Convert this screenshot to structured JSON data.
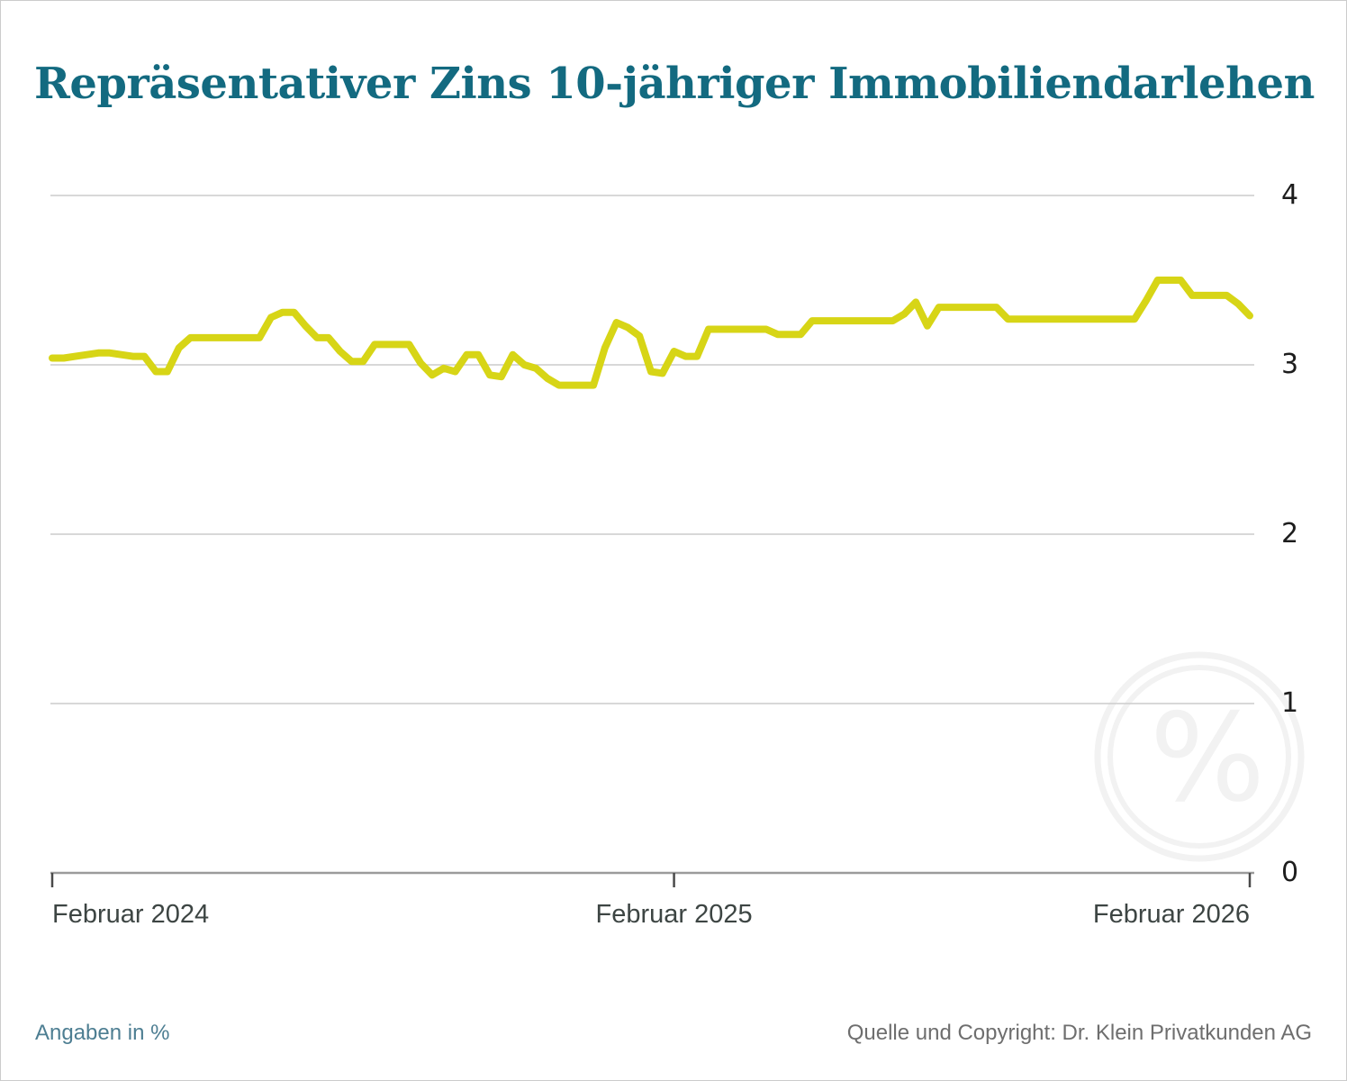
{
  "title": "Repräsentativer Zins 10-jähriger Immobiliendarlehen",
  "footer": {
    "left": "Angaben in %",
    "right": "Quelle und Copyright: Dr. Klein Privatkunden AG"
  },
  "watermark": {
    "icon": "percent-circle-icon",
    "symbol": "%"
  },
  "colors": {
    "title": "#136a80",
    "line": "#d7d516",
    "grid": "#cccccc",
    "axis": "#9b9b9b",
    "tick": "#4a4a4a",
    "x_labels": "#3d4543",
    "y_labels": "#1d1d1d",
    "footer_left": "#4d7e92",
    "footer_right": "#6e6e6e",
    "watermark": "#f2f2f2"
  },
  "chart_data": {
    "type": "line",
    "title": "Repräsentativer Zins 10-jähriger Immobiliendarlehen",
    "unit": "%",
    "ylim": [
      0,
      4
    ],
    "y_ticks": [
      0,
      1,
      2,
      3,
      4
    ],
    "grid": "horizontal",
    "legend": "none",
    "x_ticks": [
      {
        "label": "Februar 2024",
        "index": 0
      },
      {
        "label": "Februar 2025",
        "index": 54
      },
      {
        "label": "Februar 2026",
        "index": 104
      }
    ],
    "series_name": "Repräsentativer Zins 10-jähriger Immobiliendarlehen (%)",
    "values": [
      3.04,
      3.04,
      3.05,
      3.06,
      3.07,
      3.07,
      3.06,
      3.05,
      3.05,
      2.96,
      2.96,
      3.1,
      3.16,
      3.16,
      3.16,
      3.16,
      3.16,
      3.16,
      3.16,
      3.28,
      3.31,
      3.31,
      3.23,
      3.16,
      3.16,
      3.08,
      3.02,
      3.02,
      3.12,
      3.12,
      3.12,
      3.12,
      3.01,
      2.94,
      2.98,
      2.96,
      3.06,
      3.06,
      2.94,
      2.93,
      3.06,
      3.0,
      2.98,
      2.92,
      2.88,
      2.88,
      2.88,
      2.88,
      3.1,
      3.25,
      3.22,
      3.17,
      2.96,
      2.95,
      3.08,
      3.05,
      3.05,
      3.21,
      3.21,
      3.21,
      3.21,
      3.21,
      3.21,
      3.18,
      3.18,
      3.18,
      3.26,
      3.26,
      3.26,
      3.26,
      3.26,
      3.26,
      3.26,
      3.26,
      3.3,
      3.37,
      3.23,
      3.34,
      3.34,
      3.34,
      3.34,
      3.34,
      3.34,
      3.27,
      3.27,
      3.27,
      3.27,
      3.27,
      3.27,
      3.27,
      3.27,
      3.27,
      3.27,
      3.27,
      3.27,
      3.38,
      3.5,
      3.5,
      3.5,
      3.41,
      3.41,
      3.41,
      3.41,
      3.36,
      3.29
    ]
  }
}
